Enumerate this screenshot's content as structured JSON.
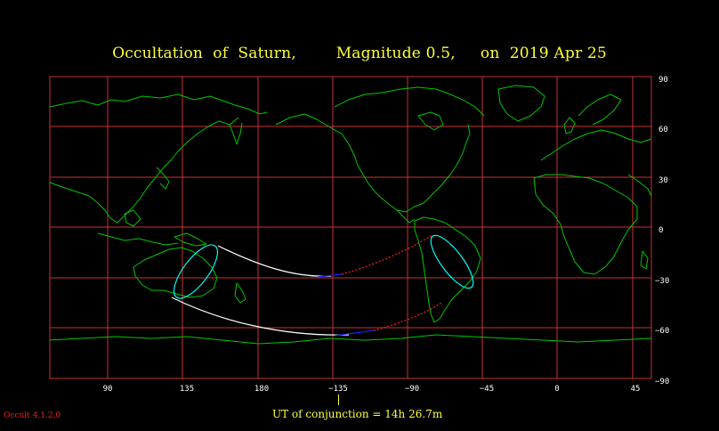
{
  "title": {
    "part1": "Occultation  of  Saturn,",
    "part2": "Magnitude 0.5,",
    "part3": "on  2019 Apr 25"
  },
  "footer": {
    "program_version": "Occult 4.1.2.0",
    "ut_conjunction": "UT of conjunction = 14h 26.7m"
  },
  "colors": {
    "background": "#000000",
    "grid": "#c83232",
    "coastline": "#00c800",
    "title_text": "#ffff33",
    "path_visible": "#ffffff",
    "path_daylight": "#1e1eff",
    "path_dotted": "#ff2020",
    "rise_set_curve": "#00ffff",
    "version_text": "#ff1a1a"
  },
  "chart_data": {
    "type": "map",
    "projection": "equirectangular",
    "lon_ticks": [
      "90",
      "135",
      "180",
      "−135",
      "−90",
      "−45",
      "0",
      "45"
    ],
    "lat_ticks": [
      "90",
      "60",
      "30",
      "0",
      "−30",
      "−60",
      "−90"
    ],
    "grid": true
  }
}
